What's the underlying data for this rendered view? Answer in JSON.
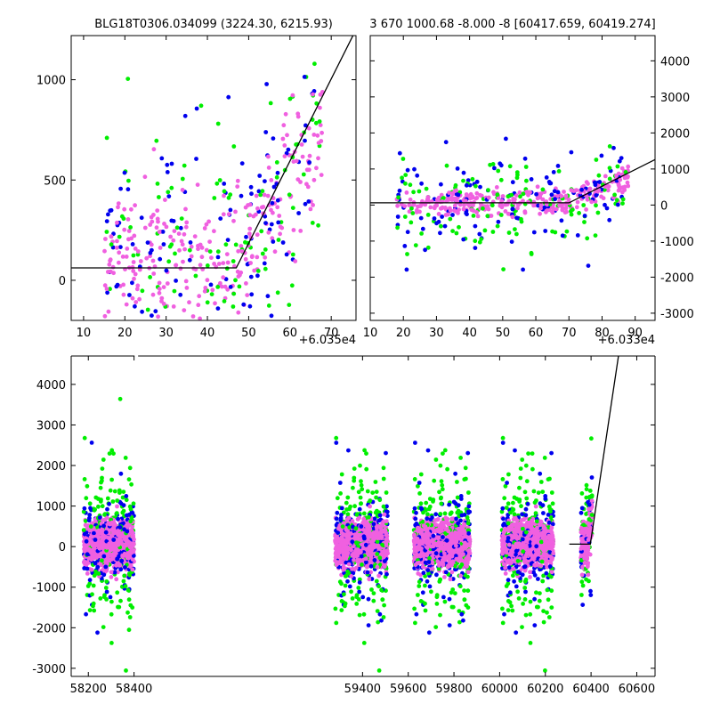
{
  "chart_data": [
    {
      "id": "panel_top_left",
      "type": "scatter",
      "title": "BLG18T0306.034099 (3224.30, 6215.93)",
      "x_offset_label": "+6.035e4",
      "xlim": [
        7,
        76
      ],
      "ylim": [
        -200,
        1220
      ],
      "x_ticks": [
        10,
        20,
        30,
        40,
        50,
        60,
        70
      ],
      "y_ticks": [
        0,
        500,
        1000
      ],
      "series_colors": [
        "#f060e0",
        "#00ee00",
        "#0000ee"
      ],
      "model_line": [
        [
          7,
          62
        ],
        [
          47,
          62
        ],
        [
          76,
          1250
        ]
      ]
    },
    {
      "id": "panel_top_right",
      "type": "scatter",
      "title": "3 670 1000.68 -8.000 -8 [60417.659, 60419.274]",
      "x_offset_label": "+6.033e4",
      "xlim": [
        10,
        96
      ],
      "ylim": [
        -3200,
        4700
      ],
      "x_ticks": [
        10,
        20,
        30,
        40,
        50,
        60,
        70,
        80,
        90
      ],
      "y_ticks": [
        -3000,
        -2000,
        -1000,
        0,
        1000,
        2000,
        3000,
        4000
      ],
      "series_colors": [
        "#f060e0",
        "#00ee00",
        "#0000ee"
      ],
      "model_line": [
        [
          10,
          62
        ],
        [
          70,
          62
        ],
        [
          96,
          1260
        ]
      ]
    },
    {
      "id": "panel_bottom",
      "type": "scatter",
      "title": "",
      "xlim": [
        58125,
        60680
      ],
      "ylim": [
        -3200,
        4700
      ],
      "x_ticks": [
        58200,
        58400,
        59400,
        59600,
        59800,
        60000,
        60200,
        60400,
        60600
      ],
      "y_ticks": [
        -3000,
        -2000,
        -1000,
        0,
        1000,
        2000,
        3000,
        4000
      ],
      "gaps": [
        [
          58410,
          59270
        ]
      ],
      "seasons": [
        [
          58180,
          58400
        ],
        [
          59280,
          59510
        ],
        [
          59625,
          59870
        ],
        [
          60010,
          60235
        ],
        [
          60355,
          60405
        ]
      ],
      "series_colors": [
        "#f060e0",
        "#00ee00",
        "#0000ee"
      ],
      "model_line": [
        [
          60305,
          60
        ],
        [
          60397,
          60
        ],
        [
          60520,
          4700
        ]
      ]
    }
  ]
}
